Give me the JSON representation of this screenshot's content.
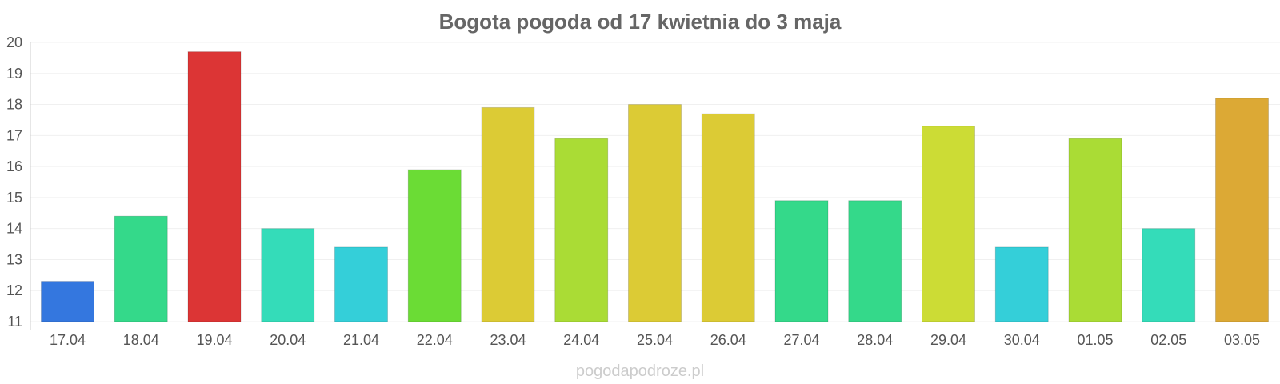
{
  "chart_data": {
    "type": "bar",
    "title": "Bogota pogoda od 17 kwietnia do 3 maja",
    "xlabel": "",
    "ylabel": "",
    "categories": [
      "17.04",
      "18.04",
      "19.04",
      "20.04",
      "21.04",
      "22.04",
      "23.04",
      "24.04",
      "25.04",
      "26.04",
      "27.04",
      "28.04",
      "29.04",
      "30.04",
      "01.05",
      "02.05",
      "03.05"
    ],
    "values": [
      12.3,
      14.4,
      19.7,
      14.0,
      13.4,
      15.9,
      17.9,
      16.9,
      18.0,
      17.7,
      14.9,
      14.9,
      17.3,
      13.4,
      16.9,
      14.0,
      18.2
    ],
    "colors": [
      "#3477df",
      "#34d98a",
      "#dc3535",
      "#34dcb9",
      "#34cfd9",
      "#6bdc35",
      "#dccb35",
      "#aadc35",
      "#dccb35",
      "#dccb35",
      "#34d98a",
      "#34d98a",
      "#ccdc35",
      "#34cfd9",
      "#aadc35",
      "#34dcb9",
      "#dca935"
    ],
    "yticks": [
      11,
      12,
      13,
      14,
      15,
      16,
      17,
      18,
      19,
      20
    ],
    "ylim": [
      11,
      20
    ],
    "grid": true,
    "legend": "none"
  },
  "watermark": "pogodapodroze.pl"
}
